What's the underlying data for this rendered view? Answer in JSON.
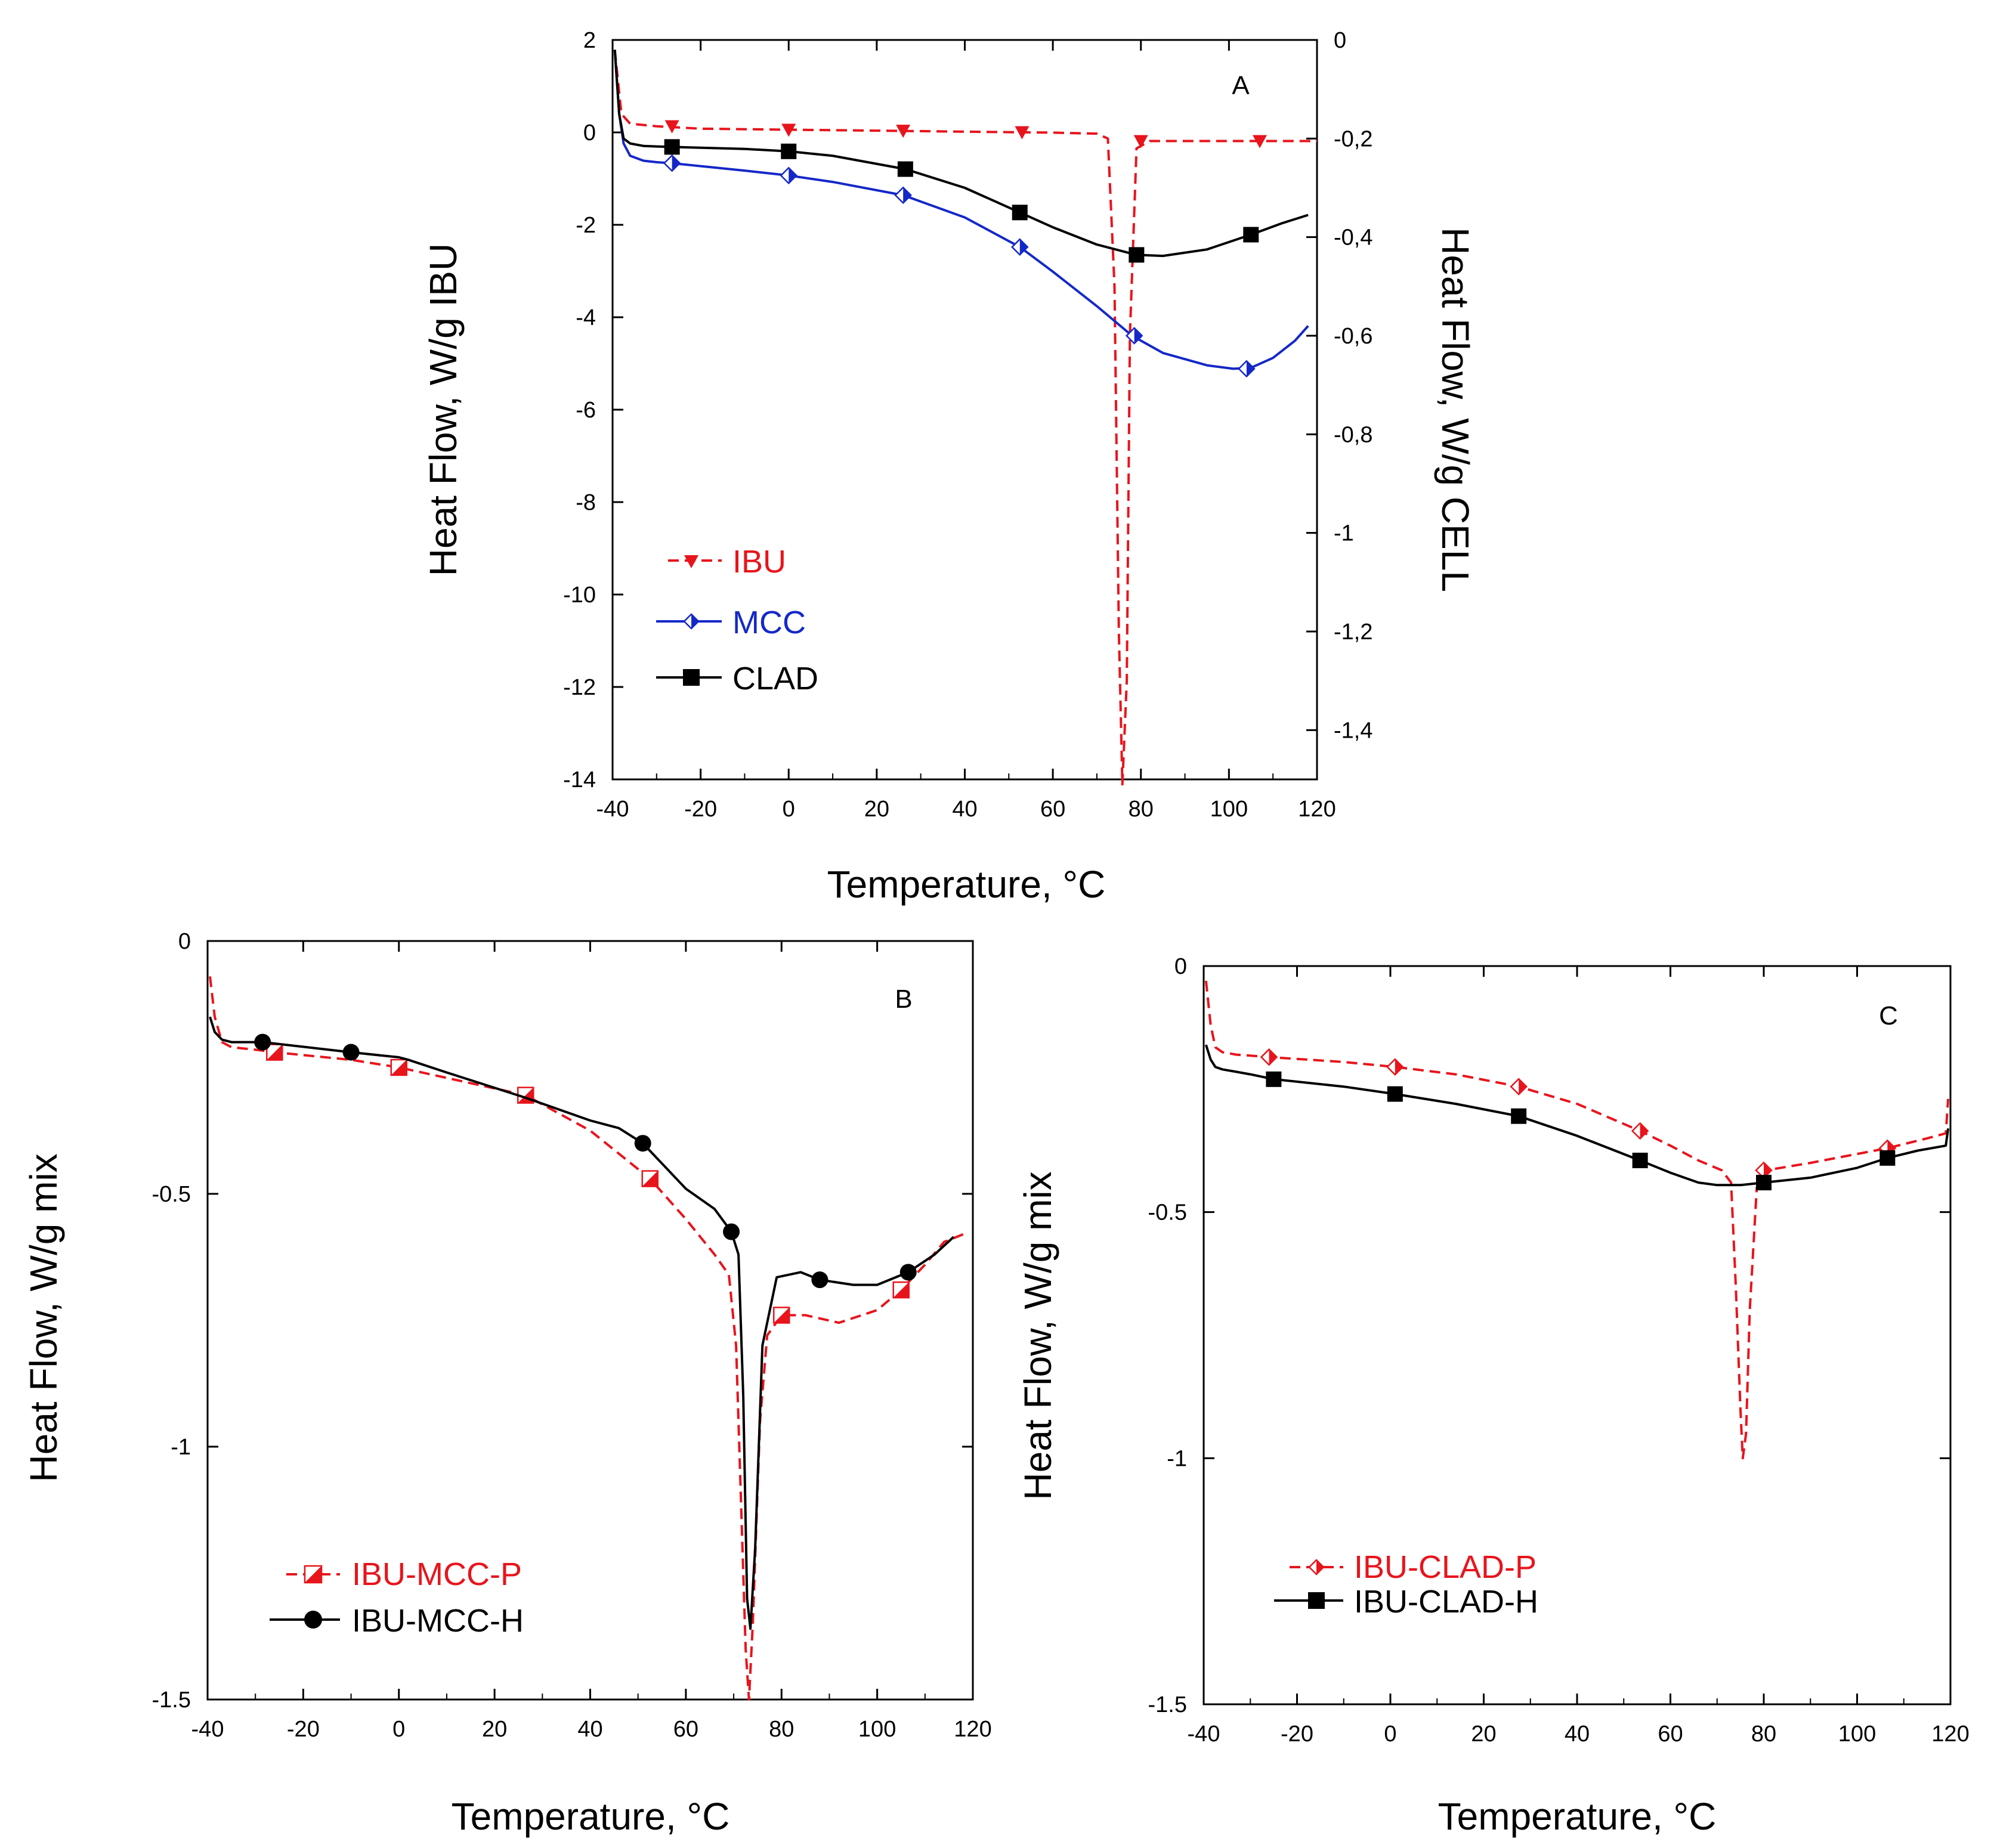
{
  "chart_data": [
    {
      "id": "A",
      "type": "line",
      "panel_label": "A",
      "xlabel": "Temperature, °C",
      "ylabel": "Heat Flow, W/g IBU",
      "ylabel_right": "Heat Flow, W/g CELL",
      "xlim": [
        -40,
        120
      ],
      "ylim": [
        -14,
        2
      ],
      "ylim_right": [
        -1.5,
        0
      ],
      "x_ticks": [
        "-40",
        "-20",
        "0",
        "20",
        "40",
        "60",
        "80",
        "100",
        "120"
      ],
      "y_ticks": [
        "2",
        "0",
        "-2",
        "-4",
        "-6",
        "-8",
        "-10",
        "-12",
        "-14"
      ],
      "y_right_ticks": [
        "0",
        "-0,2",
        "-0,4",
        "-0,6",
        "-0,8",
        "-1",
        "-1,2",
        "-1,4"
      ],
      "legend": [
        "IBU",
        "MCC",
        "CLAD"
      ],
      "series": [
        {
          "name": "IBU",
          "axis": "right",
          "color": "#e8141c",
          "dash": true,
          "marker": "tri-down",
          "x": [
            -39.5,
            -38,
            -36,
            -30,
            -20,
            0,
            20,
            40,
            60,
            70,
            72.5,
            74,
            75,
            75.8,
            76.8,
            77.5,
            79,
            82,
            100,
            120
          ],
          "y": [
            -0.02,
            -0.15,
            -0.17,
            -0.175,
            -0.18,
            -0.182,
            -0.184,
            -0.186,
            -0.188,
            -0.19,
            -0.2,
            -0.5,
            -1.2,
            -1.51,
            -1.3,
            -0.6,
            -0.22,
            -0.205,
            -0.205,
            -0.205
          ],
          "marker_x": [
            -26.5,
            0,
            26,
            53,
            80,
            107
          ],
          "marker_y": [
            -0.175,
            -0.182,
            -0.184,
            -0.187,
            -0.205,
            -0.205
          ]
        },
        {
          "name": "MCC",
          "axis": "right",
          "color": "#1428c8",
          "dash": false,
          "marker": "half-diamond",
          "x": [
            -39.5,
            -38.5,
            -37.5,
            -36,
            -33,
            -30,
            -26.5,
            -10,
            0,
            10,
            26,
            40,
            52.5,
            60,
            70,
            78,
            85,
            95,
            101,
            105,
            110,
            115,
            118
          ],
          "y": [
            -0.02,
            -0.15,
            -0.21,
            -0.235,
            -0.245,
            -0.248,
            -0.25,
            -0.265,
            -0.275,
            -0.288,
            -0.315,
            -0.36,
            -0.42,
            -0.47,
            -0.54,
            -0.6,
            -0.635,
            -0.66,
            -0.667,
            -0.665,
            -0.645,
            -0.61,
            -0.58
          ],
          "marker_x": [
            -26.5,
            0,
            26,
            52.5,
            78.5,
            104
          ],
          "marker_y": [
            -0.25,
            -0.275,
            -0.315,
            -0.42,
            -0.6,
            -0.667
          ]
        },
        {
          "name": "CLAD",
          "axis": "right",
          "color": "#000000",
          "dash": false,
          "marker": "square",
          "x": [
            -39.5,
            -38.5,
            -37.5,
            -36,
            -33,
            -30,
            -26.5,
            -10,
            0,
            10,
            26.5,
            40,
            52.5,
            60,
            70,
            79,
            85,
            95,
            105,
            112,
            118
          ],
          "y": [
            -0.02,
            -0.15,
            -0.2,
            -0.21,
            -0.215,
            -0.216,
            -0.217,
            -0.221,
            -0.226,
            -0.235,
            -0.262,
            -0.3,
            -0.35,
            -0.38,
            -0.415,
            -0.436,
            -0.438,
            -0.425,
            -0.395,
            -0.372,
            -0.355
          ],
          "marker_x": [
            -26.5,
            0,
            26.5,
            52.5,
            79,
            105
          ],
          "marker_y": [
            -0.217,
            -0.226,
            -0.262,
            -0.35,
            -0.436,
            -0.395
          ]
        }
      ]
    },
    {
      "id": "B",
      "type": "line",
      "panel_label": "B",
      "xlabel": "Temperature, °C",
      "ylabel": "Heat Flow, W/g mix",
      "xlim": [
        -40,
        120
      ],
      "ylim": [
        -1.5,
        0
      ],
      "x_ticks": [
        "-40",
        "-20",
        "0",
        "20",
        "40",
        "60",
        "80",
        "100",
        "120"
      ],
      "y_ticks": [
        "0",
        "-0.5",
        "-1",
        "-1.5"
      ],
      "legend": [
        "IBU-MCC-P",
        "IBU-MCC-H"
      ],
      "series": [
        {
          "name": "IBU-MCC-P",
          "color": "#e8141c",
          "dash": true,
          "marker": "half-square",
          "x": [
            -39.5,
            -38.5,
            -37,
            -35,
            -30,
            -26,
            -10,
            0,
            26.5,
            40,
            52.5,
            60,
            66,
            69,
            70.5,
            71.5,
            72.5,
            73.2,
            74,
            75.5,
            77,
            80,
            85,
            92,
            100,
            105,
            110,
            114,
            118
          ],
          "y": [
            -0.07,
            -0.15,
            -0.2,
            -0.21,
            -0.215,
            -0.22,
            -0.235,
            -0.25,
            -0.305,
            -0.375,
            -0.47,
            -0.55,
            -0.62,
            -0.66,
            -0.8,
            -1.1,
            -1.4,
            -1.5,
            -1.35,
            -0.95,
            -0.78,
            -0.74,
            -0.74,
            -0.755,
            -0.73,
            -0.69,
            -0.64,
            -0.595,
            -0.58
          ],
          "marker_x": [
            -26,
            0,
            26.5,
            52.5,
            80,
            105
          ],
          "marker_y": [
            -0.22,
            -0.25,
            -0.305,
            -0.47,
            -0.74,
            -0.69
          ]
        },
        {
          "name": "IBU-MCC-H",
          "color": "#000000",
          "dash": false,
          "marker": "circle",
          "x": [
            -39.5,
            -38.5,
            -37,
            -35,
            -32,
            -28.5,
            -10,
            0,
            2,
            10,
            26.5,
            40,
            46,
            51,
            60,
            66,
            69.5,
            71,
            72,
            72.8,
            73.5,
            74.5,
            76,
            79,
            84,
            88,
            95,
            100,
            106.5,
            112,
            116
          ],
          "y": [
            -0.15,
            -0.18,
            -0.195,
            -0.2,
            -0.2,
            -0.2,
            -0.22,
            -0.23,
            -0.235,
            -0.26,
            -0.31,
            -0.355,
            -0.37,
            -0.4,
            -0.49,
            -0.53,
            -0.575,
            -0.62,
            -0.9,
            -1.3,
            -1.36,
            -1.2,
            -0.8,
            -0.665,
            -0.655,
            -0.67,
            -0.68,
            -0.68,
            -0.655,
            -0.62,
            -0.585
          ],
          "marker_x": [
            -28.5,
            -10,
            51,
            69.5,
            88,
            106.5
          ],
          "marker_y": [
            -0.2,
            -0.22,
            -0.4,
            -0.575,
            -0.67,
            -0.655
          ]
        }
      ]
    },
    {
      "id": "C",
      "type": "line",
      "panel_label": "C",
      "xlabel": "Temperature, °C",
      "ylabel": "Heat Flow, W/g mix",
      "xlim": [
        -40,
        120
      ],
      "ylim": [
        -1.5,
        0
      ],
      "x_ticks": [
        "-40",
        "-20",
        "0",
        "20",
        "40",
        "60",
        "80",
        "100",
        "120"
      ],
      "y_ticks": [
        "0",
        "-0.5",
        "-1",
        "-1.5"
      ],
      "legend": [
        "IBU-CLAD-P",
        "IBU-CLAD-H"
      ],
      "series": [
        {
          "name": "IBU-CLAD-P",
          "color": "#e8141c",
          "dash": true,
          "marker": "half-diamond",
          "x": [
            -39.5,
            -38.5,
            -37.5,
            -36,
            -33,
            -30,
            -26,
            -10,
            1,
            14,
            27.5,
            40,
            53.5,
            60,
            66,
            71,
            73,
            74,
            75,
            75.5,
            76.2,
            77,
            78.5,
            80.5,
            90,
            106.5,
            115,
            119,
            119.5
          ],
          "y": [
            -0.03,
            -0.12,
            -0.165,
            -0.175,
            -0.18,
            -0.182,
            -0.185,
            -0.195,
            -0.205,
            -0.22,
            -0.245,
            -0.28,
            -0.335,
            -0.365,
            -0.395,
            -0.415,
            -0.44,
            -0.65,
            -0.9,
            -1.0,
            -0.95,
            -0.7,
            -0.45,
            -0.415,
            -0.4,
            -0.37,
            -0.35,
            -0.34,
            -0.27
          ],
          "marker_x": [
            -26,
            1,
            27.5,
            53.5,
            80,
            106.5
          ],
          "marker_y": [
            -0.185,
            -0.205,
            -0.245,
            -0.335,
            -0.415,
            -0.37
          ]
        },
        {
          "name": "IBU-CLAD-H",
          "color": "#000000",
          "dash": false,
          "marker": "square",
          "x": [
            -39.5,
            -38.5,
            -37.5,
            -36,
            -33,
            -30,
            -25,
            -10,
            1,
            14,
            27.5,
            40,
            53.5,
            60,
            66,
            70,
            75,
            80,
            90,
            100,
            106.5,
            113,
            119,
            119.5
          ],
          "y": [
            -0.16,
            -0.19,
            -0.205,
            -0.21,
            -0.215,
            -0.22,
            -0.23,
            -0.245,
            -0.26,
            -0.28,
            -0.305,
            -0.345,
            -0.395,
            -0.42,
            -0.44,
            -0.445,
            -0.445,
            -0.44,
            -0.43,
            -0.41,
            -0.39,
            -0.375,
            -0.365,
            -0.33
          ],
          "marker_x": [
            -25,
            1,
            27.5,
            53.5,
            80,
            106.5
          ],
          "marker_y": [
            -0.23,
            -0.26,
            -0.305,
            -0.395,
            -0.44,
            -0.39
          ]
        }
      ]
    }
  ]
}
